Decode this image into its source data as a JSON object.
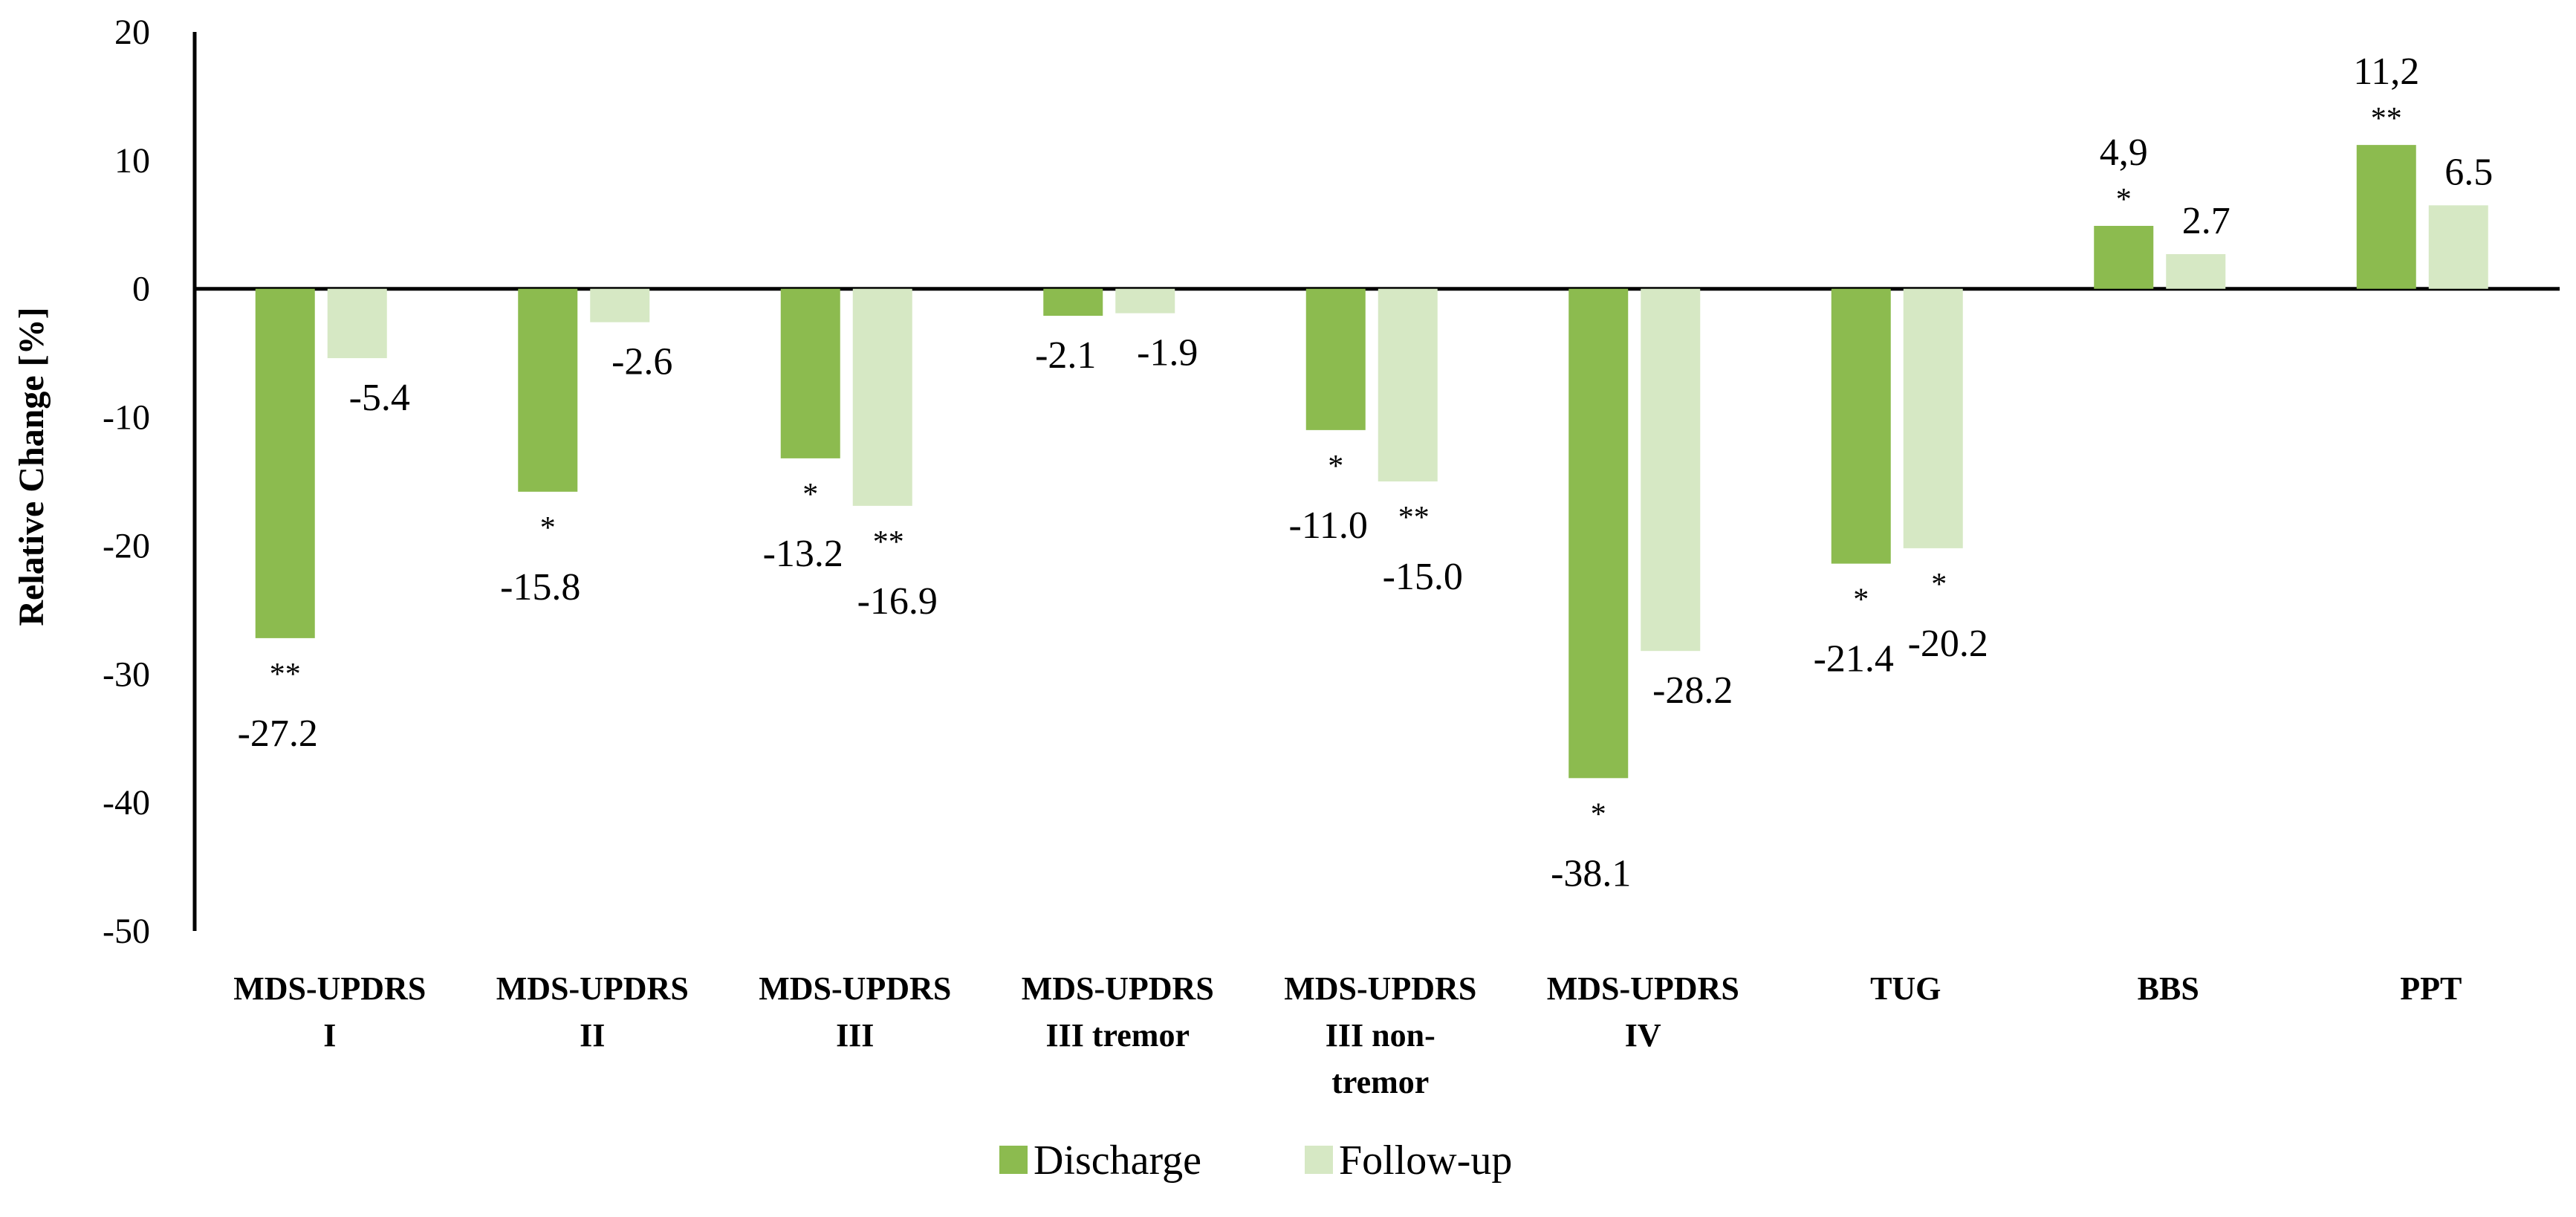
{
  "chart_data": {
    "type": "bar",
    "ylabel": "Relative Change [%]",
    "ylim": [
      -50,
      20
    ],
    "yticks": [
      20,
      10,
      0,
      -10,
      -20,
      -30,
      -40,
      -50
    ],
    "legend_position": "bottom",
    "categories": [
      [
        "MDS-UPDRS",
        "I"
      ],
      [
        "MDS-UPDRS",
        "II"
      ],
      [
        "MDS-UPDRS",
        "III"
      ],
      [
        "MDS-UPDRS",
        "III tremor"
      ],
      [
        "MDS-UPDRS",
        "III non-",
        "tremor"
      ],
      [
        "MDS-UPDRS",
        "IV"
      ],
      [
        "TUG"
      ],
      [
        "BBS"
      ],
      [
        "PPT"
      ]
    ],
    "series": [
      {
        "name": "Discharge",
        "color": "#8cbb4f",
        "values": [
          -27.2,
          -15.8,
          -13.2,
          -2.1,
          -11.0,
          -38.1,
          -21.4,
          4.9,
          11.2
        ],
        "labels": [
          "-27.2",
          "-15.8",
          "-13.2",
          "-2.1",
          "-11.0",
          "-38.1",
          "-21.4",
          "4,9",
          "11,2"
        ],
        "significance": [
          "**",
          "*",
          "*",
          "",
          "*",
          "*",
          "*",
          "*",
          "**"
        ]
      },
      {
        "name": "Follow-up",
        "color": "#d6e8c4",
        "values": [
          -5.4,
          -2.6,
          -16.9,
          -1.9,
          -15.0,
          -28.2,
          -20.2,
          2.7,
          6.5
        ],
        "labels": [
          "-5.4",
          "-2.6",
          "-16.9",
          "-1.9",
          "-15.0",
          "-28.2",
          "-20.2",
          "2.7",
          "6.5"
        ],
        "significance": [
          "",
          "",
          "**",
          "",
          "**",
          "",
          "*",
          "",
          ""
        ]
      }
    ]
  }
}
